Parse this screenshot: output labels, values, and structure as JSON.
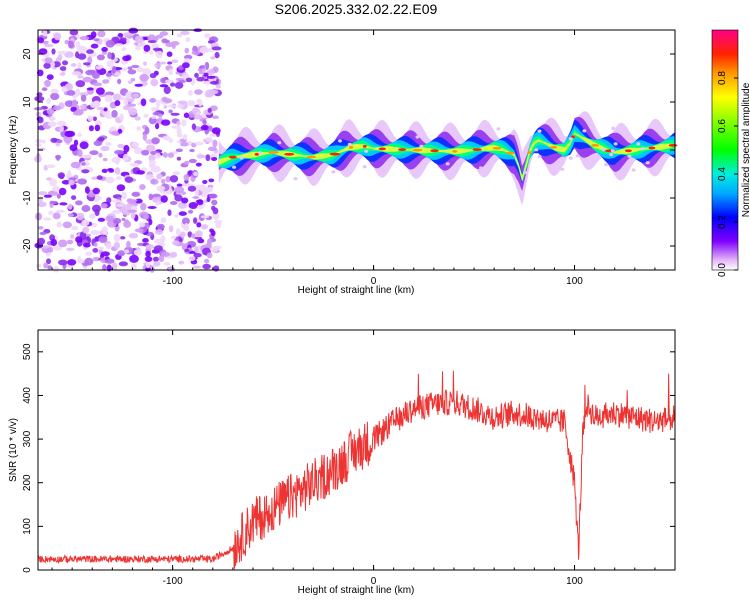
{
  "title": "S206.2025.332.02.22.E09",
  "chart_data": [
    {
      "type": "heatmap",
      "name": "spectrogram",
      "xlabel": "Height of straight line (km)",
      "ylabel": "Frequency (Hz)",
      "xlim": [
        -167,
        150
      ],
      "ylim": [
        -25,
        25
      ],
      "xticks": [
        -100,
        0,
        100
      ],
      "xtick_labels": [
        "-100",
        "0",
        "100"
      ],
      "yticks": [
        -20,
        -10,
        0,
        10,
        20
      ],
      "ytick_labels": [
        "-20",
        "-10",
        "0",
        "10",
        "20"
      ],
      "noise_region_end_km": -77,
      "ridge_frequency": {
        "x": [
          -77,
          -70,
          -60,
          -50,
          -40,
          -30,
          -20,
          -12,
          -5,
          0,
          20,
          40,
          50,
          60,
          65,
          70,
          72,
          74,
          76,
          78,
          80,
          82,
          85,
          90,
          95,
          98,
          100,
          110,
          120,
          130,
          140,
          150
        ],
        "y": [
          -2.5,
          -1.5,
          -1,
          -0.5,
          -1,
          -1.5,
          -1,
          0.5,
          0.8,
          0.3,
          0,
          -0.3,
          0,
          0.5,
          0,
          -1,
          -3,
          -6,
          -3,
          0,
          1.5,
          2,
          1.5,
          0.5,
          0,
          1.5,
          3.5,
          1,
          -0.5,
          0,
          0.5,
          1
        ]
      },
      "colorbar": {
        "label": "Normalized spectral amplitude",
        "range": [
          0,
          1
        ],
        "ticks": [
          0.0,
          0.2,
          0.4,
          0.6,
          0.8
        ],
        "tick_labels": [
          "0.0",
          "0.2",
          "0.4",
          "0.6",
          "0.8"
        ]
      }
    },
    {
      "type": "line",
      "name": "snr",
      "xlabel": "Height of straight line (km)",
      "ylabel": "SNR (10 * v/v)",
      "xlim": [
        -167,
        150
      ],
      "ylim": [
        0,
        550
      ],
      "xticks": [
        -100,
        0,
        100
      ],
      "xtick_labels": [
        "-100",
        "0",
        "100"
      ],
      "yticks": [
        0,
        100,
        200,
        300,
        400,
        500
      ],
      "ytick_labels": [
        "0",
        "100",
        "200",
        "300",
        "400",
        "500"
      ],
      "color": "#ee3333",
      "trend": {
        "x": [
          -167,
          -80,
          -70,
          -65,
          -60,
          -50,
          -40,
          -30,
          -20,
          -10,
          0,
          10,
          20,
          30,
          40,
          50,
          60,
          70,
          80,
          90,
          95,
          100,
          102,
          104,
          106,
          110,
          120,
          130,
          140,
          150
        ],
        "y": [
          25,
          25,
          50,
          80,
          110,
          140,
          170,
          200,
          230,
          270,
          300,
          340,
          370,
          380,
          385,
          370,
          350,
          360,
          350,
          340,
          340,
          200,
          40,
          300,
          380,
          350,
          360,
          350,
          340,
          350
        ]
      }
    }
  ]
}
